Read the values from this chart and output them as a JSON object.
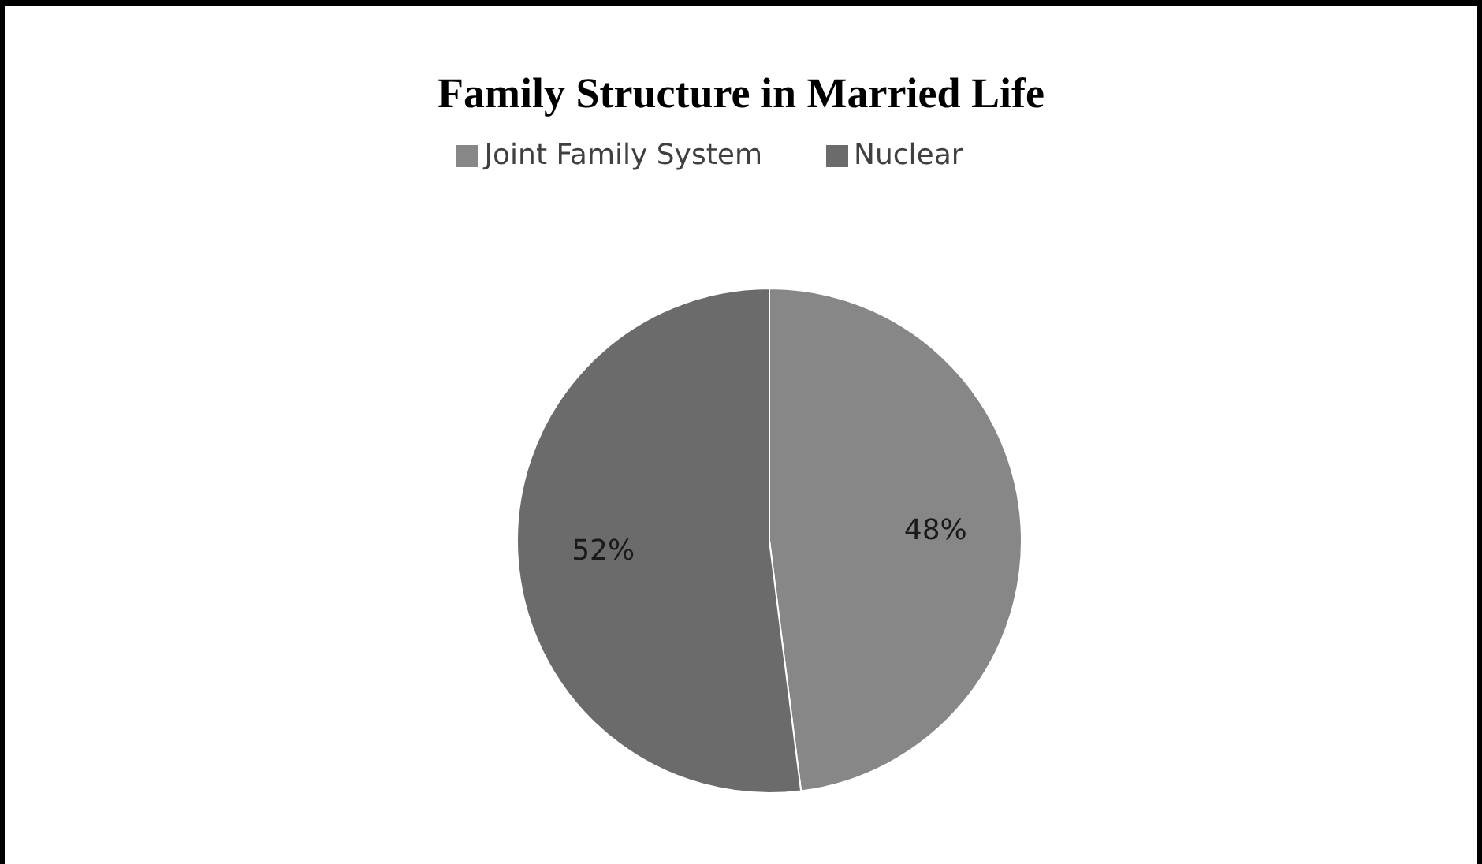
{
  "chart_data": {
    "type": "pie",
    "title": "Family Structure in Married Life",
    "categories": [
      "Joint Family System",
      "Nuclear"
    ],
    "values": [
      48,
      52
    ],
    "colors": [
      "#878787",
      "#6b6b6b"
    ],
    "value_labels": [
      "48%",
      "52%"
    ],
    "legend": "top"
  }
}
